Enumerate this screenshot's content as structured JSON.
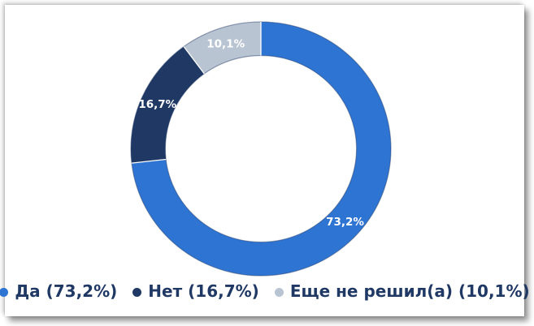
{
  "chart_data": {
    "type": "pie",
    "subtype": "donut",
    "title": "",
    "direction": "clockwise",
    "start_angle_deg": 0,
    "hole_ratio": 0.735,
    "legend_position": "bottom",
    "segments": [
      {
        "label": "Да",
        "value": 73.2,
        "display": "73,2%",
        "color": "#2E74D2"
      },
      {
        "label": "Нет",
        "value": 16.7,
        "display": "16,7%",
        "color": "#1F3864"
      },
      {
        "label": "Еще не решил(а)",
        "value": 10.1,
        "display": "10,1%",
        "color": "#B9C4D3"
      }
    ]
  },
  "legend": {
    "text_color": "#1F3864",
    "items": [
      {
        "label": "Да (73,2%)",
        "color": "#2E74D2"
      },
      {
        "label": "Нет (16,7%)",
        "color": "#1F3864"
      },
      {
        "label": "Еще не решил(а) (10,1%)",
        "color": "#B9C4D3"
      }
    ]
  },
  "colors": {
    "segment_outline": "rgba(31,56,100,0.45)",
    "separator": "#ffffff",
    "data_label": "#ffffff",
    "card_background": "#ffffff"
  }
}
